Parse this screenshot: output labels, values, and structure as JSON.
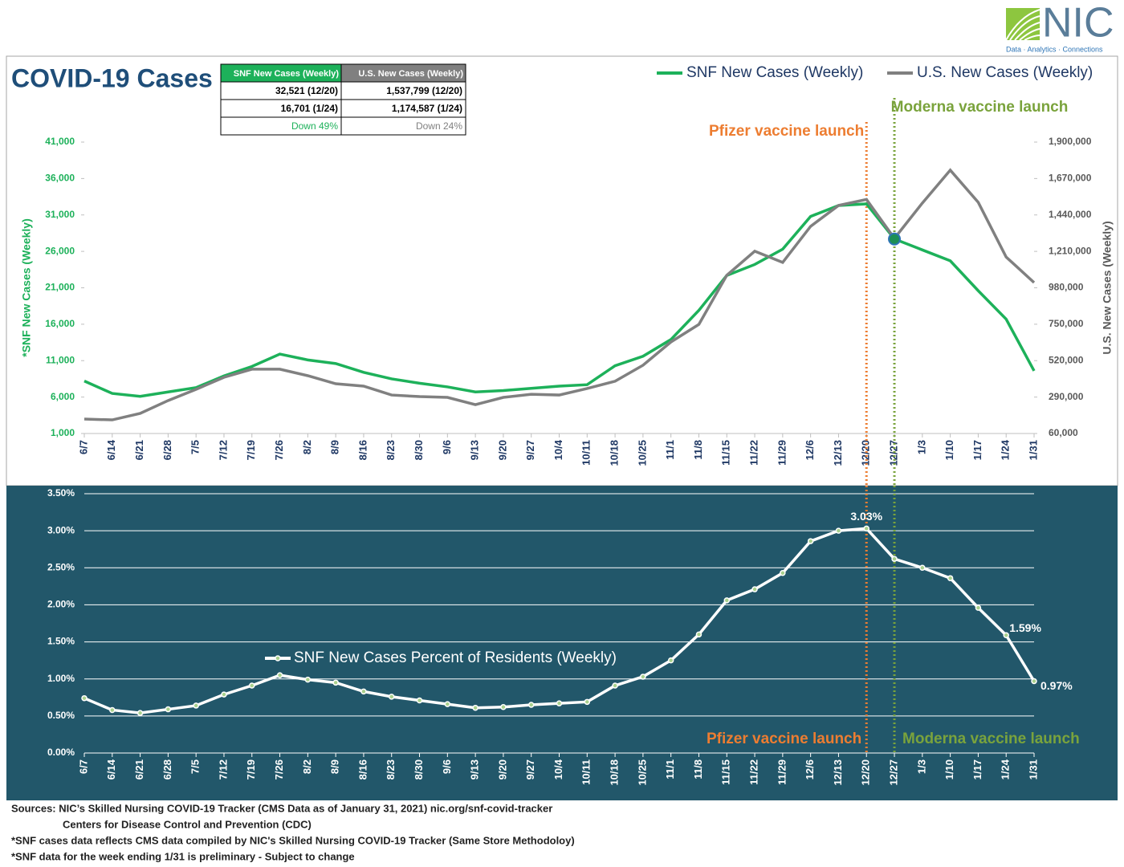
{
  "logo": {
    "name": "NIC",
    "tagline": "Data · Analytics · Connections"
  },
  "table": {
    "header": [
      "SNF New Cases (Weekly)",
      "U.S. New Cases (Weekly)"
    ],
    "rows": [
      [
        "32,521 (12/20)",
        "1,537,799 (12/20)"
      ],
      [
        "16,701 (1/24)",
        "1,174,587 (1/24)"
      ],
      [
        "Down 49%",
        "Down 24%"
      ]
    ]
  },
  "chart_data": [
    {
      "type": "line",
      "title": "COVID-19 Cases",
      "ylabel": "*SNF New Cases (Weekly)",
      "y2label": "U.S. New Cases (Weekly)",
      "legend": "top-right",
      "grid": false,
      "categories": [
        "6/7",
        "6/14",
        "6/21",
        "6/28",
        "7/5",
        "7/12",
        "7/19",
        "7/26",
        "8/2",
        "8/9",
        "8/16",
        "8/23",
        "8/30",
        "9/6",
        "9/13",
        "9/20",
        "9/27",
        "10/4",
        "10/11",
        "10/18",
        "10/25",
        "11/1",
        "11/8",
        "11/15",
        "11/22",
        "11/29",
        "12/6",
        "12/13",
        "12/20",
        "12/27",
        "1/3",
        "1/10",
        "1/17",
        "1/24",
        "1/31"
      ],
      "series": [
        {
          "name": "SNF New Cases (Weekly)",
          "color": "#1db15a",
          "axis": "y",
          "values": [
            8200,
            6500,
            6100,
            6700,
            7300,
            8900,
            10200,
            11900,
            11100,
            10600,
            9400,
            8500,
            7900,
            7400,
            6700,
            6900,
            7200,
            7500,
            7700,
            10300,
            11600,
            13900,
            17900,
            22700,
            24200,
            26300,
            30800,
            32300,
            32521,
            27700,
            26200,
            24700,
            20600,
            16701,
            9600
          ]
        },
        {
          "name": "U.S. New Cases (Weekly)",
          "color": "#808080",
          "axis": "y2",
          "values": [
            151000,
            146000,
            187000,
            268000,
            339000,
            415000,
            466000,
            466000,
            425000,
            374000,
            359000,
            303000,
            293000,
            288000,
            242000,
            288000,
            308000,
            303000,
            344000,
            390000,
            491000,
            638000,
            749000,
            1059000,
            1211000,
            1140000,
            1368000,
            1500000,
            1537799,
            1292000,
            1515000,
            1723000,
            1520000,
            1174587,
            1013000
          ]
        }
      ],
      "ylim": [
        1000,
        41000
      ],
      "yticks": [
        {
          "value": 1000,
          "label": "1,000"
        },
        {
          "value": 6000,
          "label": "6,000"
        },
        {
          "value": 11000,
          "label": "11,000"
        },
        {
          "value": 16000,
          "label": "16,000"
        },
        {
          "value": 21000,
          "label": "21,000"
        },
        {
          "value": 26000,
          "label": "26,000"
        },
        {
          "value": 31000,
          "label": "31,000"
        },
        {
          "value": 36000,
          "label": "36,000"
        },
        {
          "value": 41000,
          "label": "41,000"
        }
      ],
      "y2lim": [
        60000,
        1900000
      ],
      "y2ticks": [
        {
          "value": 60000,
          "label": "60,000"
        },
        {
          "value": 290000,
          "label": "290,000"
        },
        {
          "value": 520000,
          "label": "520,000"
        },
        {
          "value": 750000,
          "label": "750,000"
        },
        {
          "value": 980000,
          "label": "980,000"
        },
        {
          "value": 1210000,
          "label": "1,210,000"
        },
        {
          "value": 1440000,
          "label": "1,440,000"
        },
        {
          "value": 1670000,
          "label": "1,670,000"
        },
        {
          "value": 1900000,
          "label": "1,900,000"
        }
      ],
      "annotations": [
        {
          "text": "Pfizer vaccine launch",
          "x": "12/20",
          "color": "#ed7d31"
        },
        {
          "text": "Moderna vaccine launch",
          "x": "12/27",
          "color": "#7aa33c"
        }
      ]
    },
    {
      "type": "line",
      "background": "#22576a",
      "grid": true,
      "categories": [
        "6/7",
        "6/14",
        "6/21",
        "6/28",
        "7/5",
        "7/12",
        "7/19",
        "7/26",
        "8/2",
        "8/9",
        "8/16",
        "8/23",
        "8/30",
        "9/6",
        "9/13",
        "9/20",
        "9/27",
        "10/4",
        "10/11",
        "10/18",
        "10/25",
        "11/1",
        "11/8",
        "11/15",
        "11/22",
        "11/29",
        "12/6",
        "12/13",
        "12/20",
        "12/27",
        "1/3",
        "1/10",
        "1/17",
        "1/24",
        "1/31"
      ],
      "series": [
        {
          "name": "SNF New Cases Percent of Residents (Weekly)",
          "color": "#ffffff",
          "values": [
            0.74,
            0.58,
            0.54,
            0.59,
            0.64,
            0.79,
            0.91,
            1.05,
            0.99,
            0.95,
            0.83,
            0.76,
            0.71,
            0.66,
            0.61,
            0.62,
            0.65,
            0.67,
            0.69,
            0.91,
            1.03,
            1.25,
            1.6,
            2.06,
            2.21,
            2.43,
            2.86,
            3.0,
            3.03,
            2.62,
            2.5,
            2.36,
            1.96,
            1.59,
            0.97
          ],
          "value_labels": [
            null,
            null,
            null,
            null,
            null,
            null,
            null,
            null,
            null,
            null,
            null,
            null,
            null,
            null,
            null,
            null,
            null,
            null,
            null,
            null,
            null,
            null,
            null,
            null,
            null,
            null,
            null,
            null,
            "3.03%",
            null,
            null,
            null,
            null,
            "1.59%",
            "0.97%"
          ]
        }
      ],
      "ylim": [
        0,
        3.5
      ],
      "yticks": [
        {
          "value": 0,
          "label": "0.00%"
        },
        {
          "value": 0.5,
          "label": "0.50%"
        },
        {
          "value": 1,
          "label": "1.00%"
        },
        {
          "value": 1.5,
          "label": "1.50%"
        },
        {
          "value": 2,
          "label": "2.00%"
        },
        {
          "value": 2.5,
          "label": "2.50%"
        },
        {
          "value": 3,
          "label": "3.00%"
        },
        {
          "value": 3.5,
          "label": "3.50%"
        }
      ],
      "annotations": [
        {
          "text": "Pfizer vaccine launch",
          "x": "12/20",
          "color": "#ed7d31"
        },
        {
          "text": "Moderna vaccine launch",
          "x": "12/27",
          "color": "#7aa33c"
        }
      ]
    }
  ],
  "footer": [
    "Sources:  NIC’s Skilled Nursing COVID-19 Tracker (CMS Data as of January 31, 2021)  nic.org/snf-covid-tracker",
    "Centers for Disease Control and Prevention (CDC)",
    "*SNF cases data reflects CMS data compiled by NIC's Skilled Nursing COVID-19 Tracker (Same Store Methodoloy)",
    "*SNF data for the week ending 1/31 is preliminary - Subject to change"
  ]
}
